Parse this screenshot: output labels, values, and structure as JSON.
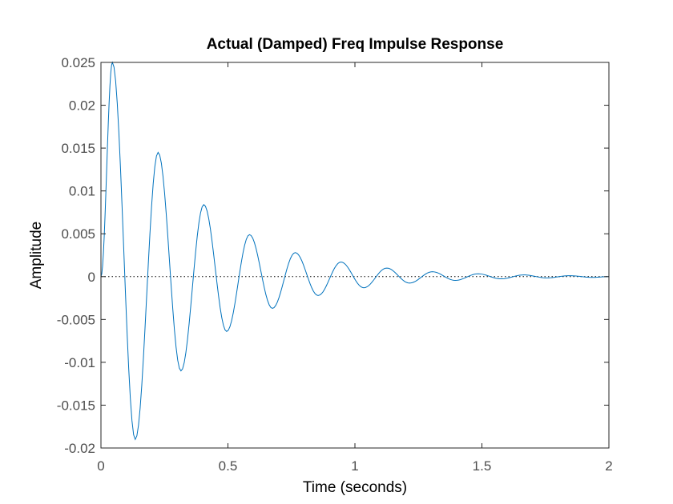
{
  "chart_data": {
    "type": "line",
    "title": "Actual (Damped) Freq Impulse Response",
    "xlabel": "Time (seconds)",
    "ylabel": "Amplitude",
    "xlim": [
      0,
      2
    ],
    "ylim": [
      -0.02,
      0.025
    ],
    "x_ticks": [
      0,
      0.5,
      1,
      1.5,
      2
    ],
    "x_tick_labels": [
      "0",
      "0.5",
      "1",
      "1.5",
      "2"
    ],
    "y_ticks": [
      -0.02,
      -0.015,
      -0.01,
      -0.005,
      0,
      0.005,
      0.01,
      0.015,
      0.02,
      0.025
    ],
    "y_tick_labels": [
      "-0.02",
      "-0.015",
      "-0.01",
      "-0.005",
      "0",
      "0.005",
      "0.01",
      "0.015",
      "0.02",
      "0.025"
    ],
    "grid": false,
    "zero_line": true,
    "series_color": "#0072bd",
    "series": [
      {
        "x": [
          0,
          0.045,
          0.135,
          0.225,
          0.315,
          0.405,
          0.495,
          0.585,
          0.675,
          0.765,
          0.855,
          0.945,
          1.035,
          1.125,
          1.215,
          1.305,
          1.395,
          1.485,
          1.575,
          1.665,
          1.755,
          1.845,
          1.935,
          2.0
        ],
        "values": [
          0,
          0.025,
          -0.019,
          0.0145,
          -0.011,
          0.0084,
          -0.0064,
          0.0049,
          -0.0037,
          0.0028,
          -0.0022,
          0.0017,
          -0.0013,
          0.001,
          -0.00075,
          0.00057,
          -0.00044,
          0.00033,
          -0.00026,
          0.0002,
          -0.00015,
          0.00011,
          -9e-05,
          0
        ]
      }
    ]
  }
}
